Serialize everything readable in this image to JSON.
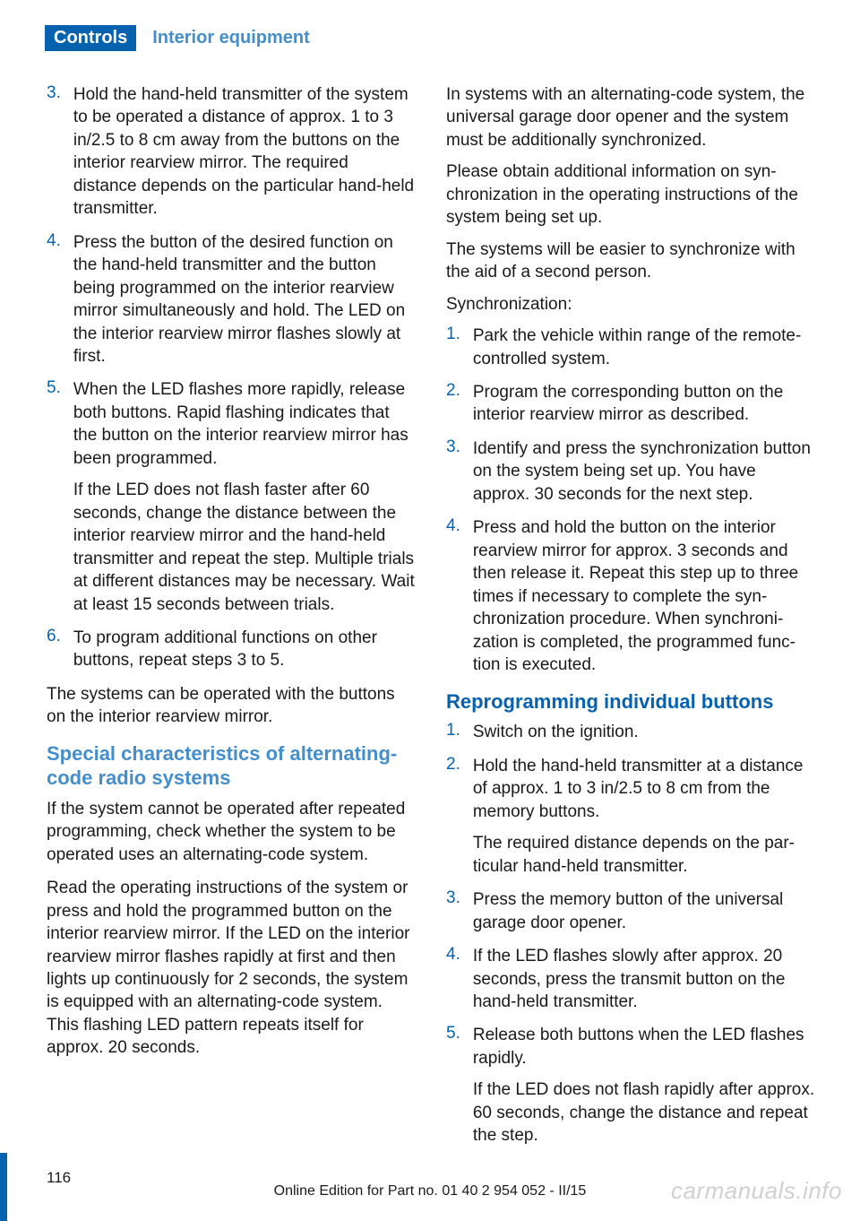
{
  "header": {
    "controls": "Controls",
    "section": "Interior equipment"
  },
  "left": {
    "list1": [
      {
        "n": "3.",
        "text": "Hold the hand-held transmitter of the sys­tem to be operated a distance of approx. 1 to 3 in/2.5 to 8 cm away from the buttons on the interior rearview mirror. The re­quired distance depends on the particular hand-held transmitter."
      },
      {
        "n": "4.",
        "text": "Press the button of the desired function on the hand-held transmitter and the button being programmed on the interior rearview mirror simultaneously and hold. The LED on the interior rearview mirror flashes slowly at first."
      },
      {
        "n": "5.",
        "text": "When the LED flashes more rapidly, re­lease both buttons. Rapid flashing indi­cates that the button on the interior rear­view mirror has been programmed.",
        "extra": "If the LED does not flash faster after 60 seconds, change the distance between the interior rearview mirror and the hand-held transmitter and repeat the step. Multi­ple trials at different distances may be nec­essary. Wait at least 15 seconds between trials."
      },
      {
        "n": "6.",
        "text": "To program additional functions on other buttons, repeat steps 3 to 5."
      }
    ],
    "after_list1": "The systems can be operated with the buttons on the interior rearview mirror.",
    "h1": "Special characteristics of alternating-code radio systems",
    "p1": "If the system cannot be operated after re­peated programming, check whether the sys­tem to be operated uses an alternating-code system.",
    "p2": "Read the operating instructions of the system or press and hold the programmed button on the interior rearview mirror. If the LED on the interior rearview mirror flashes rapidly at first and then lights up continuously for 2 seconds, the system is equipped with an alternating-code system. This flashing LED pattern re­peats itself for approx. 20 seconds."
  },
  "right": {
    "p1": "In systems with an alternating-code system, the universal garage door opener and the sys­tem must be additionally synchronized.",
    "p2": "Please obtain additional information on syn­chronization in the operating instructions of the system being set up.",
    "p3": "The systems will be easier to synchronize with the aid of a second person.",
    "p4": "Synchronization:",
    "list1": [
      {
        "n": "1.",
        "text": "Park the vehicle within range of the re­mote-controlled system."
      },
      {
        "n": "2.",
        "text": "Program the corresponding button on the interior rearview mirror as described."
      },
      {
        "n": "3.",
        "text": "Identify and press the synchronization but­ton on the system being set up. You have approx. 30 seconds for the next step."
      },
      {
        "n": "4.",
        "text": "Press and hold the button on the interior rearview mirror for approx. 3 seconds and then release it. Repeat this step up to three times if necessary to complete the syn­chronization procedure. When synchroni­zation is completed, the programmed func­tion is executed."
      }
    ],
    "h2": "Reprogramming individual buttons",
    "list2": [
      {
        "n": "1.",
        "text": "Switch on the ignition."
      },
      {
        "n": "2.",
        "text": "Hold the hand-held transmitter at a dis­tance of approx. 1 to 3 in/2.5 to 8 cm from the memory buttons.",
        "extra": "The required distance depends on the par­ticular hand-held transmitter."
      },
      {
        "n": "3.",
        "text": "Press the memory button of the universal garage door opener."
      },
      {
        "n": "4.",
        "text": "If the LED flashes slowly after approx. 20 seconds, press the transmit button on the hand-held transmitter."
      },
      {
        "n": "5.",
        "text": "Release both buttons when the LED flashes rapidly.",
        "extra": "If the LED does not flash rapidly after ap­prox. 60 seconds, change the distance and repeat the step."
      }
    ]
  },
  "footer": {
    "page": "116",
    "line": "Online Edition for Part no. 01 40 2 954 052 - II/15",
    "watermark": "carmanuals.info"
  },
  "colors": {
    "brand": "#0661ae",
    "light": "#448ecb"
  }
}
